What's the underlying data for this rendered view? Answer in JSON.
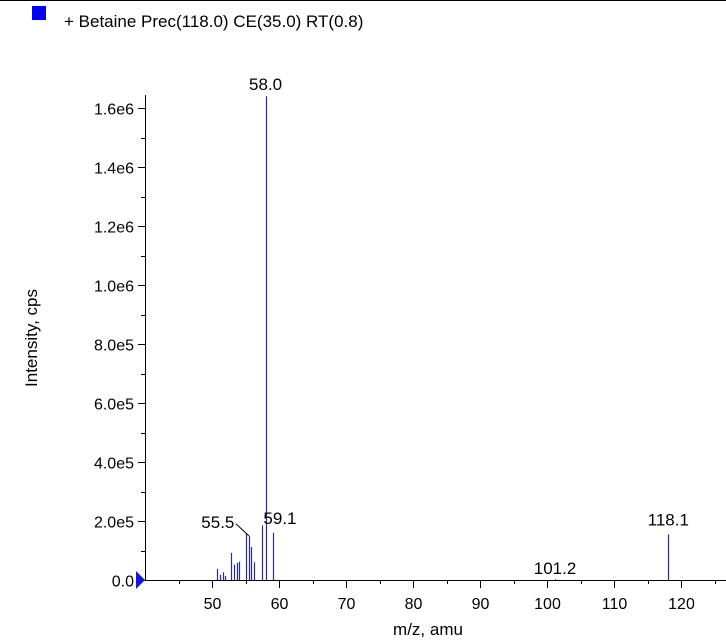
{
  "legend": {
    "marker_color": "#0000ff",
    "text": "+ Betaine Prec(118.0) CE(35.0) RT(0.8)"
  },
  "chart_data": {
    "type": "bar",
    "xlabel": "m/z, amu",
    "ylabel": "Intensity, cps",
    "xlim": [
      40,
      127
    ],
    "ylim": [
      0,
      1680000.0
    ],
    "xticks": [
      50,
      60,
      70,
      80,
      90,
      100,
      110,
      120
    ],
    "yticks": [
      {
        "value": 0,
        "label": "0.0"
      },
      {
        "value": 200000,
        "label": "2.0e5"
      },
      {
        "value": 400000,
        "label": "4.0e5"
      },
      {
        "value": 600000,
        "label": "6.0e5"
      },
      {
        "value": 800000,
        "label": "8.0e5"
      },
      {
        "value": 1000000,
        "label": "1.0e6"
      },
      {
        "value": 1200000,
        "label": "1.2e6"
      },
      {
        "value": 1400000,
        "label": "1.4e6"
      },
      {
        "value": 1600000,
        "label": "1.6e6"
      }
    ],
    "series_color": "#2a2a9a",
    "marker_color": "#1414e6",
    "peaks": [
      {
        "mz": 50.7,
        "intensity": 38000
      },
      {
        "mz": 51.2,
        "intensity": 18000
      },
      {
        "mz": 51.6,
        "intensity": 26000
      },
      {
        "mz": 52.0,
        "intensity": 14000
      },
      {
        "mz": 52.9,
        "intensity": 92000
      },
      {
        "mz": 53.3,
        "intensity": 52000
      },
      {
        "mz": 53.7,
        "intensity": 58000
      },
      {
        "mz": 54.1,
        "intensity": 62000
      },
      {
        "mz": 55.1,
        "intensity": 158000
      },
      {
        "mz": 55.5,
        "intensity": 150000
      },
      {
        "mz": 55.8,
        "intensity": 112000
      },
      {
        "mz": 56.3,
        "intensity": 60000
      },
      {
        "mz": 57.5,
        "intensity": 185000
      },
      {
        "mz": 58.0,
        "intensity": 1640000
      },
      {
        "mz": 59.1,
        "intensity": 160000
      },
      {
        "mz": 101.2,
        "intensity": 3000
      },
      {
        "mz": 118.1,
        "intensity": 155000
      }
    ],
    "annotations": [
      {
        "text": "58.0",
        "mz": 58.0,
        "intensity": 1640000
      },
      {
        "text": "55.5",
        "mz": 55.5,
        "intensity": 150000
      },
      {
        "text": "59.1",
        "mz": 59.1,
        "intensity": 160000
      },
      {
        "text": "101.2",
        "mz": 101.2,
        "intensity": 3000
      },
      {
        "text": "118.1",
        "mz": 118.1,
        "intensity": 155000
      }
    ]
  }
}
